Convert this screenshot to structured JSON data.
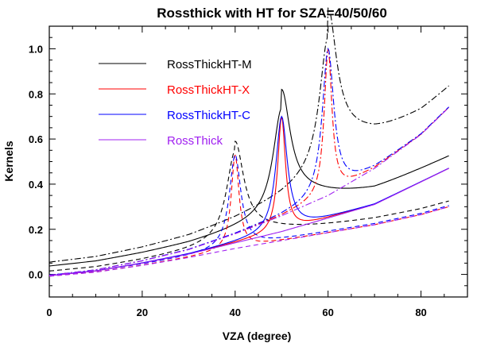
{
  "chart_data": {
    "type": "line",
    "title": "Rossthick with HT for SZA=40/50/60",
    "xlabel": "VZA (degree)",
    "ylabel": "Kernels",
    "xlim": [
      0,
      90
    ],
    "ylim": [
      -0.1,
      1.1
    ],
    "xticks": [
      0,
      20,
      40,
      60,
      80
    ],
    "yticks": [
      0.0,
      0.2,
      0.4,
      0.6,
      0.8,
      1.0
    ],
    "xtick_labels": [
      "0",
      "20",
      "40",
      "60",
      "80"
    ],
    "ytick_labels": [
      "0.0",
      "0.2",
      "0.4",
      "0.6",
      "0.8",
      "1.0"
    ],
    "grid": false,
    "legend_position": "top-left",
    "line_styles": {
      "SZA=40": "dashed",
      "SZA=50": "solid",
      "SZA=60": "dash-dot"
    },
    "series": [
      {
        "name": "RossThickHT-M",
        "color": "#000000"
      },
      {
        "name": "RossThickHT-X",
        "color": "#ff0000"
      },
      {
        "name": "RossThickHT-C",
        "color": "#0000ff"
      },
      {
        "name": "RossThick",
        "color": "#a020f0"
      }
    ],
    "sza_values": [
      40,
      50,
      60
    ],
    "x_max_data": 86,
    "rossthick_base": {
      "x": [
        0,
        10,
        20,
        30,
        40,
        50,
        60,
        70,
        80,
        86
      ],
      "sza40": [
        -0.008,
        0.01,
        0.04,
        0.075,
        0.115,
        0.15,
        0.185,
        0.22,
        0.265,
        0.3
      ],
      "sza50": [
        -0.006,
        0.015,
        0.05,
        0.09,
        0.14,
        0.19,
        0.25,
        0.31,
        0.41,
        0.47
      ],
      "sza60": [
        -0.004,
        0.02,
        0.06,
        0.11,
        0.18,
        0.26,
        0.35,
        0.47,
        0.62,
        0.74
      ]
    },
    "hotspot": {
      "peak_values": [
        0.53,
        0.7,
        1.0
      ],
      "offsets": {
        "RossThickHT-M": [
          0.02,
          0.04,
          0.055
        ],
        "RossThickHT-X": [
          0.0,
          0.0,
          0.0
        ],
        "RossThickHT-C": [
          0.005,
          0.0,
          0.0
        ]
      },
      "widths": {
        "RossThickHT-M": 2.2,
        "RossThickHT-X": 1.0,
        "RossThickHT-C": 1.5
      }
    }
  }
}
